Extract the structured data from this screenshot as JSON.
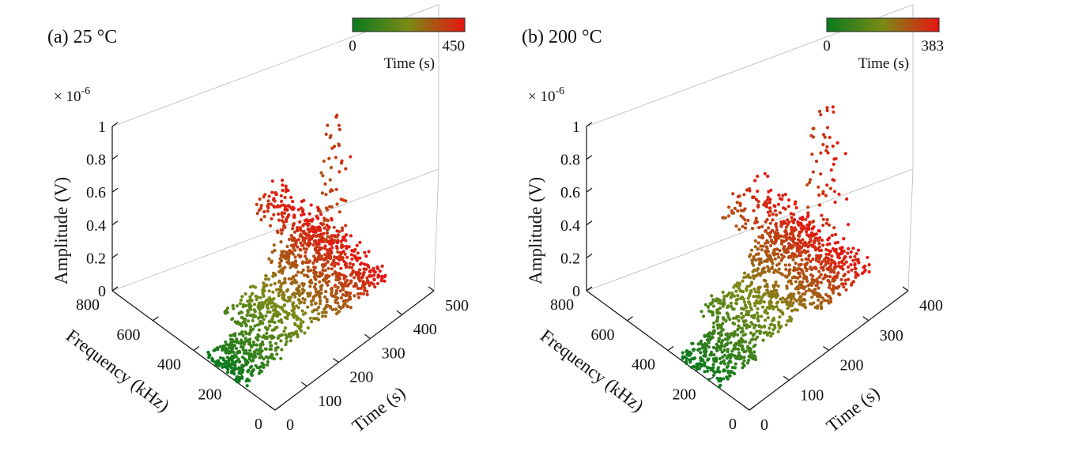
{
  "chart_data": [
    {
      "type": "scatter",
      "title": "(a) 25 °C",
      "colorbar": {
        "min_label": "0",
        "max_label": "450",
        "label": "Time (s)",
        "min": 0,
        "max": 450,
        "colors": [
          "#0a7a1e",
          "#7a8a16",
          "#e81410"
        ]
      },
      "zlabel": "Amplitude (V)",
      "zscale_label": "× 10",
      "zscale_exp": "-6",
      "zlim": [
        0,
        1
      ],
      "zticks": [
        "0",
        "0.2",
        "0.4",
        "0.6",
        "0.8",
        "1"
      ],
      "ylabel": "Frequency (kHz)",
      "ylim": [
        0,
        800
      ],
      "yticks": [
        "0",
        "200",
        "400",
        "600",
        "800"
      ],
      "xlabel": "Time (s)",
      "xlim": [
        0,
        500
      ],
      "xticks": [
        "0",
        "100",
        "200",
        "300",
        "400",
        "500"
      ],
      "points_summary": [
        {
          "time": [
            0,
            120
          ],
          "frequency": [
            150,
            350
          ],
          "amplitude": [
            0,
            0.03
          ]
        },
        {
          "time": [
            120,
            300
          ],
          "frequency": [
            180,
            450
          ],
          "amplitude": [
            0,
            0.05
          ]
        },
        {
          "time": [
            300,
            450
          ],
          "frequency": [
            150,
            500
          ],
          "amplitude": [
            0,
            0.12
          ]
        },
        {
          "time": [
            370,
            450
          ],
          "frequency": [
            380,
            700
          ],
          "amplitude": [
            0.02,
            0.16
          ]
        },
        {
          "time": [
            330,
            400
          ],
          "frequency": [
            250,
            330
          ],
          "amplitude": [
            0.2,
            0.95
          ]
        }
      ]
    },
    {
      "type": "scatter",
      "title": "(b) 200 °C",
      "colorbar": {
        "min_label": "0",
        "max_label": "383",
        "label": "Time (s)",
        "min": 0,
        "max": 383,
        "colors": [
          "#0a7a1e",
          "#7a8a16",
          "#e81410"
        ]
      },
      "zlabel": "Amplitude (V)",
      "zscale_label": "× 10",
      "zscale_exp": "-6",
      "zlim": [
        0,
        1
      ],
      "zticks": [
        "0",
        "0.2",
        "0.4",
        "0.6",
        "0.8",
        "1"
      ],
      "ylabel": "Frequency (kHz)",
      "ylim": [
        0,
        800
      ],
      "yticks": [
        "0",
        "200",
        "400",
        "600",
        "800"
      ],
      "xlabel": "Time (s)",
      "xlim": [
        0,
        400
      ],
      "xticks": [
        "0",
        "100",
        "200",
        "300",
        "400"
      ],
      "points_summary": [
        {
          "time": [
            0,
            100
          ],
          "frequency": [
            150,
            350
          ],
          "amplitude": [
            0,
            0.03
          ]
        },
        {
          "time": [
            100,
            250
          ],
          "frequency": [
            180,
            450
          ],
          "amplitude": [
            0,
            0.05
          ]
        },
        {
          "time": [
            250,
            383
          ],
          "frequency": [
            150,
            500
          ],
          "amplitude": [
            0,
            0.12
          ]
        },
        {
          "time": [
            280,
            383
          ],
          "frequency": [
            380,
            700
          ],
          "amplitude": [
            0.02,
            0.16
          ]
        },
        {
          "time": [
            300,
            383
          ],
          "frequency": [
            250,
            330
          ],
          "amplitude": [
            0.2,
            0.95
          ]
        }
      ]
    }
  ]
}
